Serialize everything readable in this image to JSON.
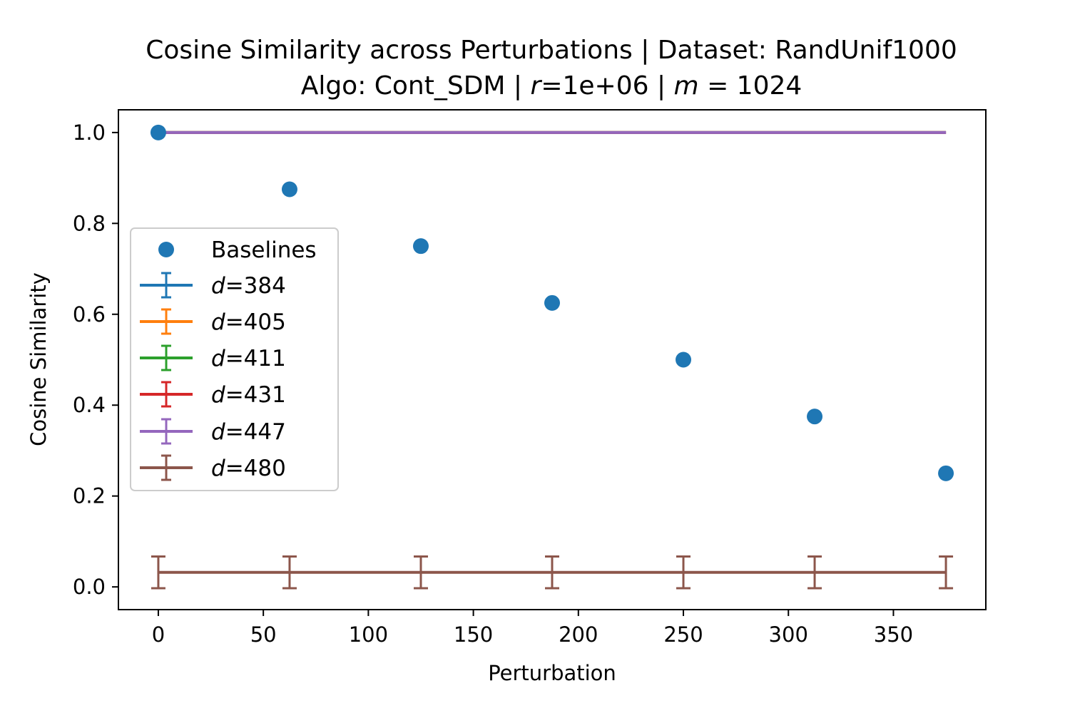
{
  "chart_data": {
    "type": "scatter",
    "title": {
      "line1": "Cosine Similarity across Perturbations | Dataset: RandUnif1000",
      "line2_prefix": "Algo: Cont_SDM | ",
      "line2_r_var": "r",
      "line2_r_value": "=1e+06 | ",
      "line2_m_var": "m",
      "line2_m_value": " = 1024"
    },
    "xlabel": "Perturbation",
    "ylabel": "Cosine Similarity",
    "xlim": [
      -19,
      394
    ],
    "ylim": [
      -0.05,
      1.05
    ],
    "xticks": [
      0,
      50,
      100,
      150,
      200,
      250,
      300,
      350
    ],
    "xtick_labels": [
      "0",
      "50",
      "100",
      "150",
      "200",
      "250",
      "300",
      "350"
    ],
    "yticks": [
      0.0,
      0.2,
      0.4,
      0.6,
      0.8,
      1.0
    ],
    "ytick_labels": [
      "0.0",
      "0.2",
      "0.4",
      "0.6",
      "0.8",
      "1.0"
    ],
    "grid": false,
    "legend_position": "center-left",
    "x": [
      0,
      62.5,
      125,
      187.5,
      250,
      312.5,
      375
    ],
    "baselines": {
      "name": "Baselines",
      "color": "#1f77b4",
      "values": [
        1.0,
        0.875,
        0.75,
        0.625,
        0.5,
        0.375,
        0.25
      ]
    },
    "series": [
      {
        "var": "d",
        "label_value": "=384",
        "color": "#1f77b4",
        "values": [
          1.0,
          1.0,
          1.0,
          1.0,
          1.0,
          1.0,
          1.0
        ],
        "errors": [
          0,
          0,
          0,
          0,
          0,
          0,
          0
        ]
      },
      {
        "var": "d",
        "label_value": "=405",
        "color": "#ff7f0e",
        "values": [
          1.0,
          1.0,
          1.0,
          1.0,
          1.0,
          1.0,
          1.0
        ],
        "errors": [
          0,
          0,
          0,
          0,
          0,
          0,
          0
        ]
      },
      {
        "var": "d",
        "label_value": "=411",
        "color": "#2ca02c",
        "values": [
          1.0,
          1.0,
          1.0,
          1.0,
          1.0,
          1.0,
          1.0
        ],
        "errors": [
          0,
          0,
          0,
          0,
          0,
          0,
          0
        ]
      },
      {
        "var": "d",
        "label_value": "=431",
        "color": "#d62728",
        "values": [
          1.0,
          1.0,
          1.0,
          1.0,
          1.0,
          1.0,
          1.0
        ],
        "errors": [
          0,
          0,
          0,
          0,
          0,
          0,
          0
        ]
      },
      {
        "var": "d",
        "label_value": "=447",
        "color": "#9467bd",
        "values": [
          1.0,
          1.0,
          1.0,
          1.0,
          1.0,
          1.0,
          1.0
        ],
        "errors": [
          0,
          0,
          0,
          0,
          0,
          0,
          0
        ]
      },
      {
        "var": "d",
        "label_value": "=480",
        "color": "#8c564b",
        "values": [
          0.032,
          0.032,
          0.032,
          0.032,
          0.032,
          0.032,
          0.032
        ],
        "errors": [
          0.035,
          0.035,
          0.035,
          0.035,
          0.035,
          0.035,
          0.035
        ]
      }
    ]
  }
}
